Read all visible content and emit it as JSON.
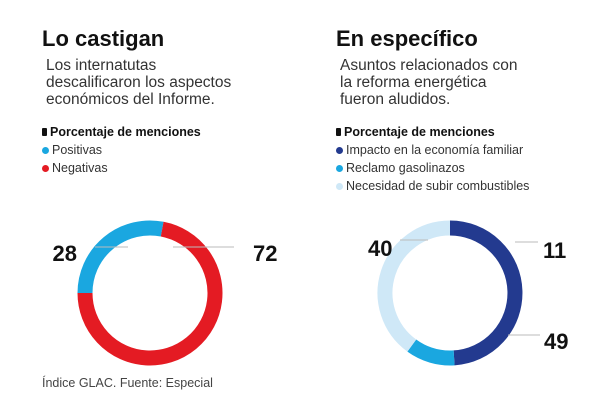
{
  "charts": [
    {
      "title": "Lo castigan",
      "subtitle": "Los internatutas\ndescalificaron los aspectos\neconómicos del Informe.",
      "legend_header": "Porcentaje de menciones",
      "chart_data": {
        "type": "pie",
        "style": "donut",
        "title": "Lo castigan",
        "series": [
          {
            "name": "Positivas",
            "value": 28,
            "color": "#1aa7e0"
          },
          {
            "name": "Negativas",
            "value": 72,
            "color": "#e41b23"
          }
        ]
      }
    },
    {
      "title": "En específico",
      "subtitle": "Asuntos relacionados con\nla reforma energética\nfueron aludidos.",
      "legend_header": "Porcentaje de menciones",
      "chart_data": {
        "type": "pie",
        "style": "donut",
        "title": "En específico",
        "series": [
          {
            "name": "Impacto en la economía familiar",
            "value": 49,
            "color": "#233a8f"
          },
          {
            "name": "Reclamo gasolinazos",
            "value": 11,
            "color": "#1aa7e0"
          },
          {
            "name": "Necesidad de subir combustibles",
            "value": 40,
            "color": "#cfe8f7"
          }
        ]
      }
    }
  ],
  "source": "Índice GLAC. Fuente: Especial"
}
